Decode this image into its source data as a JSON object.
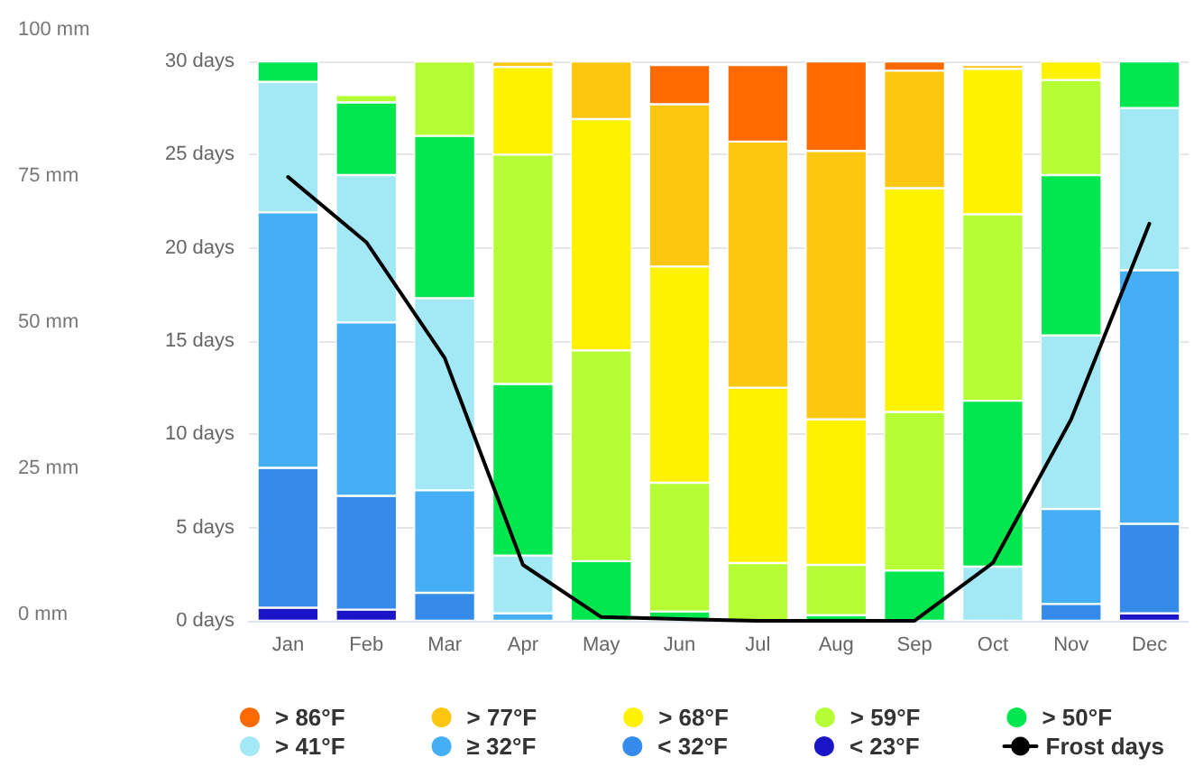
{
  "chart_data": {
    "type": "bar",
    "stacked": true,
    "categories": [
      "Jan",
      "Feb",
      "Mar",
      "Apr",
      "May",
      "Jun",
      "Jul",
      "Aug",
      "Sep",
      "Oct",
      "Nov",
      "Dec"
    ],
    "ylim": [
      0,
      30
    ],
    "yticks": [
      {
        "value": 0,
        "label": "0 days"
      },
      {
        "value": 5,
        "label": "5 days"
      },
      {
        "value": 10,
        "label": "10 days"
      },
      {
        "value": 15,
        "label": "15 days"
      },
      {
        "value": 20,
        "label": "20 days"
      },
      {
        "value": 25,
        "label": "25 days"
      },
      {
        "value": 30,
        "label": "30 days"
      }
    ],
    "annotations": [
      "100 mm",
      "75 mm",
      "50 mm",
      "25 mm",
      "0 mm"
    ],
    "grid": "y",
    "legend": "bottom",
    "series": [
      {
        "name": "< 23°F",
        "color": "#1a16c8",
        "values": [
          0.7,
          0.6,
          0,
          0,
          0,
          0,
          0,
          0,
          0,
          0,
          0,
          0.4
        ]
      },
      {
        "name": "< 32°F",
        "color": "#358be9",
        "values": [
          7.5,
          6.1,
          1.5,
          0,
          0,
          0,
          0,
          0,
          0,
          0,
          0.9,
          4.8
        ]
      },
      {
        "name": "≥ 32°F",
        "color": "#45aff5",
        "values": [
          13.7,
          9.3,
          5.5,
          0.4,
          0,
          0,
          0,
          0,
          0,
          null,
          5.1,
          13.6
        ]
      },
      {
        "name": "> 41°F",
        "color": "#a3e9f5",
        "values": [
          7.0,
          7.9,
          10.3,
          3.1,
          0,
          0,
          0,
          0,
          0,
          2.9,
          9.3,
          8.7
        ]
      },
      {
        "name": "> 50°F",
        "color": "#00e64f",
        "values": [
          1.1,
          3.9,
          8.7,
          9.2,
          3.2,
          0.5,
          null,
          0.3,
          2.7,
          8.9,
          8.6,
          2.5
        ]
      },
      {
        "name": "> 59°F",
        "color": "#b5fd34",
        "values": [
          0,
          0.4,
          4.0,
          12.3,
          11.3,
          6.9,
          3.1,
          2.7,
          8.5,
          10.0,
          5.1,
          0
        ]
      },
      {
        "name": "> 68°F",
        "color": "#fff200",
        "values": [
          0,
          0,
          0,
          4.7,
          12.4,
          11.6,
          9.4,
          7.8,
          12.0,
          7.8,
          1.0,
          0
        ]
      },
      {
        "name": "> 77°F",
        "color": "#fdc60f",
        "values": [
          0,
          0,
          0,
          0.3,
          3.1,
          8.7,
          13.2,
          14.4,
          6.3,
          0.2,
          0,
          0
        ]
      },
      {
        "name": "> 86°F",
        "color": "#ff6a00",
        "values": [
          0,
          0,
          0,
          0,
          0,
          2.1,
          4.1,
          4.8,
          0.5,
          0,
          0,
          0
        ]
      },
      {
        "name": "Frost days",
        "type": "line",
        "color": "#000000",
        "marker": "none",
        "values": [
          23.8,
          20.3,
          14.1,
          3.0,
          0.2,
          0.1,
          0,
          0,
          0,
          3.1,
          10.8,
          21.3
        ]
      }
    ]
  }
}
